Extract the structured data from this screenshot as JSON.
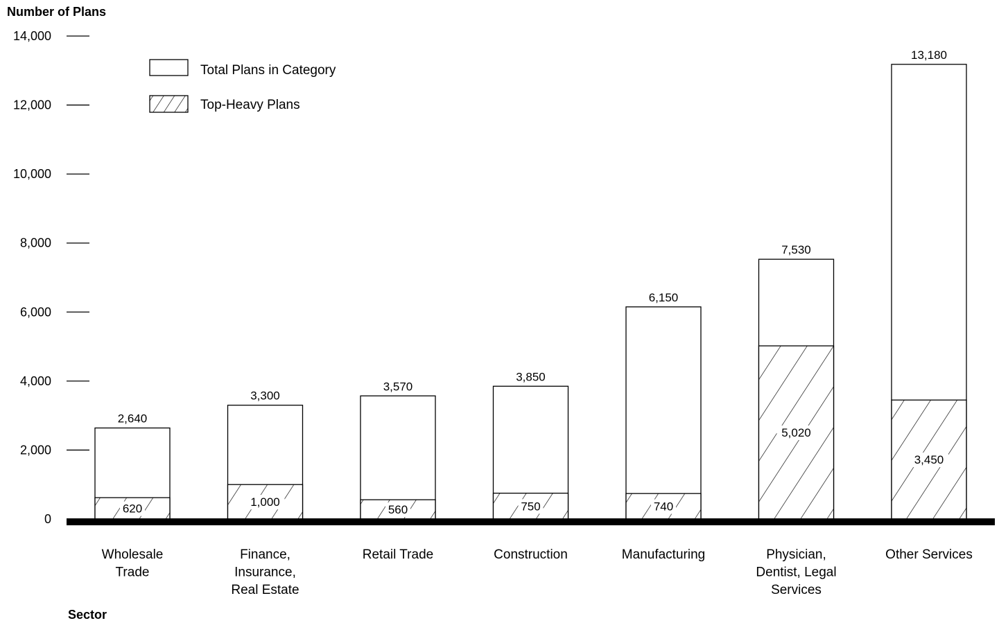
{
  "chart_data": {
    "type": "bar",
    "ylabel": "Number of Plans",
    "xlabel": "Sector",
    "ylim": [
      0,
      14000
    ],
    "yticks": [
      0,
      2000,
      4000,
      6000,
      8000,
      10000,
      12000,
      14000
    ],
    "ytick_labels": [
      "0",
      "2,000",
      "4,000",
      "6,000",
      "8,000",
      "10,000",
      "12,000",
      "14,000"
    ],
    "categories": [
      [
        "Wholesale",
        "Trade"
      ],
      [
        "Finance,",
        "Insurance,",
        "Real Estate"
      ],
      [
        "Retail Trade"
      ],
      [
        "Construction"
      ],
      [
        "Manufacturing"
      ],
      [
        "Physician,",
        "Dentist, Legal",
        "Services"
      ],
      [
        "Other Services"
      ]
    ],
    "series": [
      {
        "name": "Total Plans in Category",
        "pattern": "none",
        "values": [
          2640,
          3300,
          3570,
          3850,
          6150,
          7530,
          13180
        ],
        "labels": [
          "2,640",
          "3,300",
          "3,570",
          "3,850",
          "6,150",
          "7,530",
          "13,180"
        ]
      },
      {
        "name": "Top-Heavy Plans",
        "pattern": "hatched",
        "values": [
          620,
          1000,
          560,
          750,
          740,
          5020,
          3450
        ],
        "labels": [
          "620",
          "1,000",
          "560",
          "750",
          "740",
          "5,020",
          "3,450"
        ]
      }
    ],
    "legend_position": "top-left",
    "grid": false
  }
}
